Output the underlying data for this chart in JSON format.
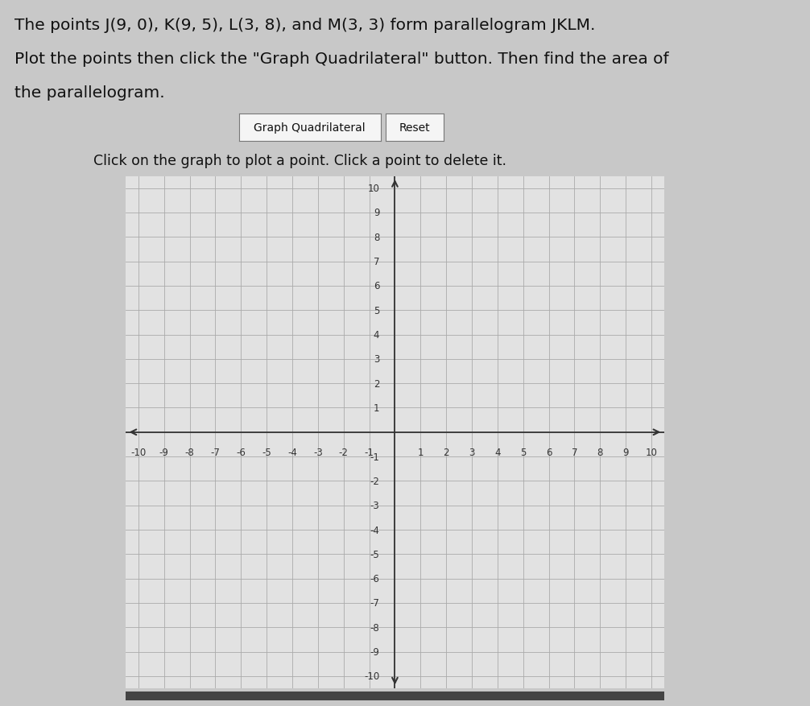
{
  "title_line1": "The points J(9, 0), K(9, 5), L(3, 8), and M(3, 3) form parallelogram JKLM.",
  "title_line2": "Plot the points then click the \"Graph Quadrilateral\" button. Then find the area of",
  "title_line3": "the parallelogram.",
  "button1_text": "Graph Quadrilateral",
  "button2_text": "Reset",
  "instruction_text": "Click on the graph to plot a point. Click a point to delete it.",
  "axis_min": -10,
  "axis_max": 10,
  "bg_color": "#c8c8c8",
  "graph_bg_color": "#e2e2e2",
  "grid_color": "#aaaaaa",
  "axis_color": "#333333",
  "tick_color": "#333333",
  "tick_fontsize": 8.5,
  "title_fontsize": 14.5,
  "instruction_fontsize": 12.5,
  "button_fontsize": 10
}
